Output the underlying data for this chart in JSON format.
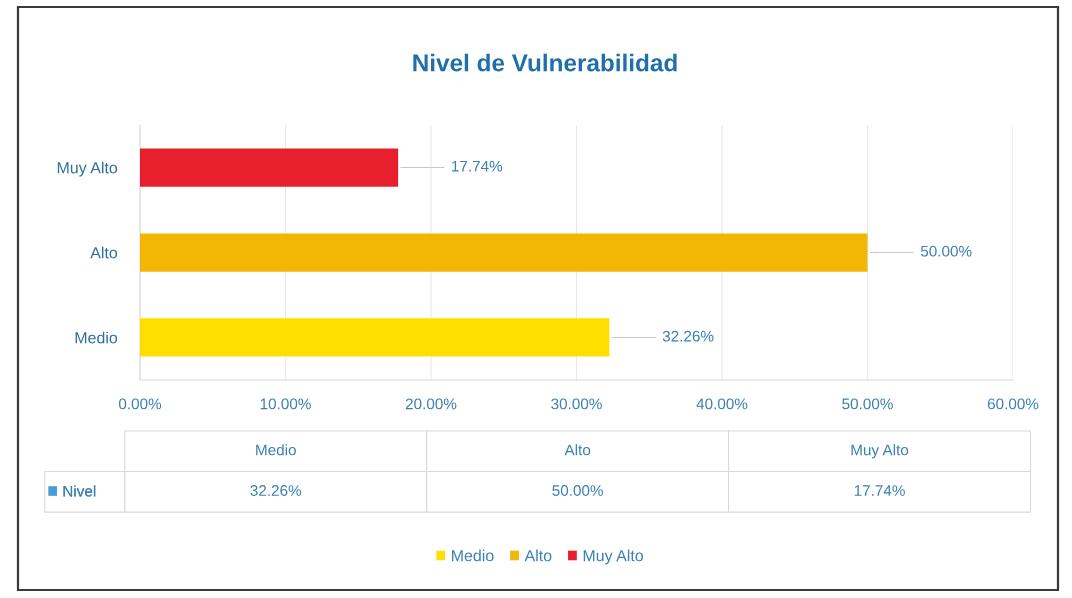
{
  "chart_data": {
    "type": "bar",
    "orientation": "horizontal",
    "title": "Nivel de Vulnerabilidad",
    "categories": [
      "Muy Alto",
      "Alto",
      "Medio"
    ],
    "series": [
      {
        "name": "Nivel",
        "color": "#4a9bd6",
        "colors": [
          "#e8202e",
          "#f2b705",
          "#ffdf00"
        ],
        "values": [
          17.74,
          50.0,
          32.26
        ],
        "value_labels": [
          "17.74%",
          "50.00%",
          "32.26%"
        ]
      }
    ],
    "xlim": [
      0,
      60
    ],
    "xticks": [
      {
        "value": 0,
        "label": "0.00%"
      },
      {
        "value": 10,
        "label": "10.00%"
      },
      {
        "value": 20,
        "label": "20.00%"
      },
      {
        "value": 30,
        "label": "30.00%"
      },
      {
        "value": 40,
        "label": "40.00%"
      },
      {
        "value": 50,
        "label": "50.00%"
      },
      {
        "value": 60,
        "label": "60.00%"
      }
    ],
    "grid": "x",
    "legend": "bottom"
  }
}
